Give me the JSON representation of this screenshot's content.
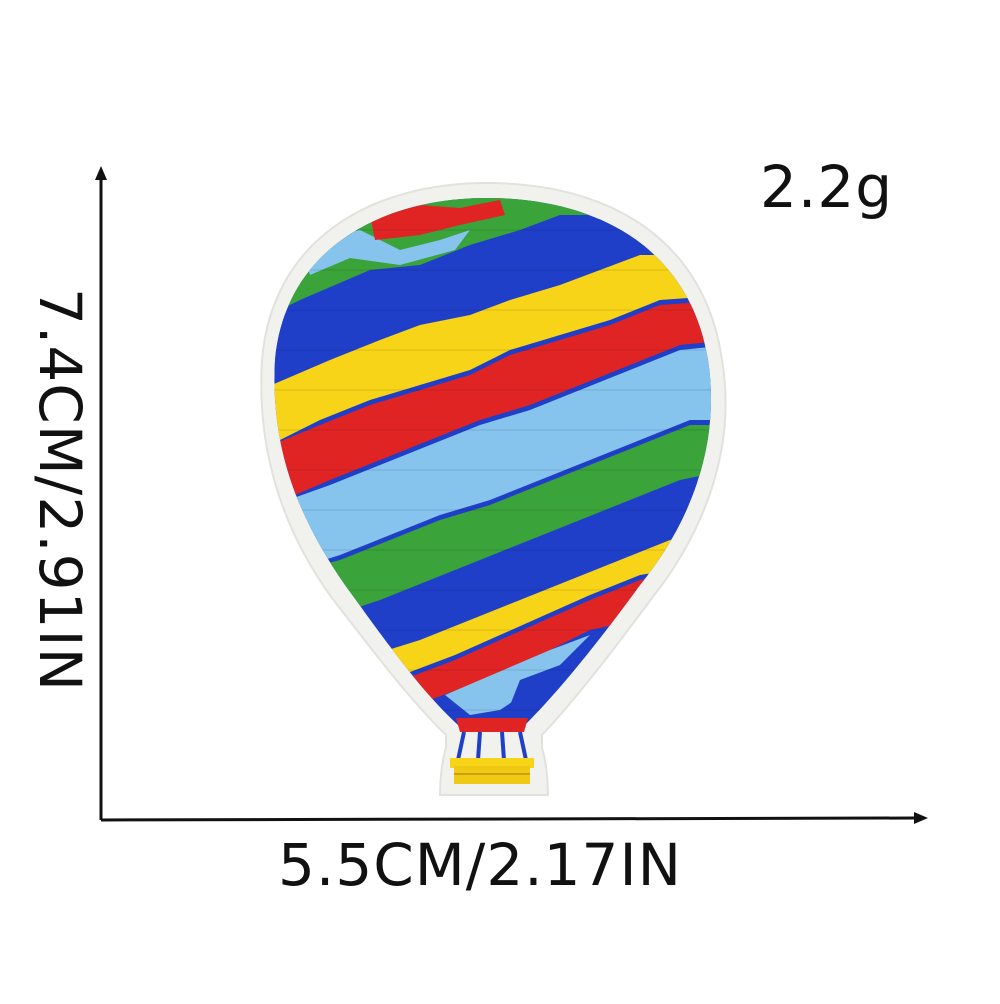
{
  "product": {
    "weight": "2.2g",
    "width": "5.5CM/2.17IN",
    "height": "7.4CM/2.91IN"
  },
  "colors": {
    "red": "#e02424",
    "yellow": "#f7d417",
    "blue": "#1f3fc9",
    "light_blue": "#86c4ee",
    "green": "#3aa33a",
    "felt": "#f1f1ee",
    "axis": "#111111"
  },
  "icons": {
    "patch": "hot-air-balloon-patch-icon"
  }
}
